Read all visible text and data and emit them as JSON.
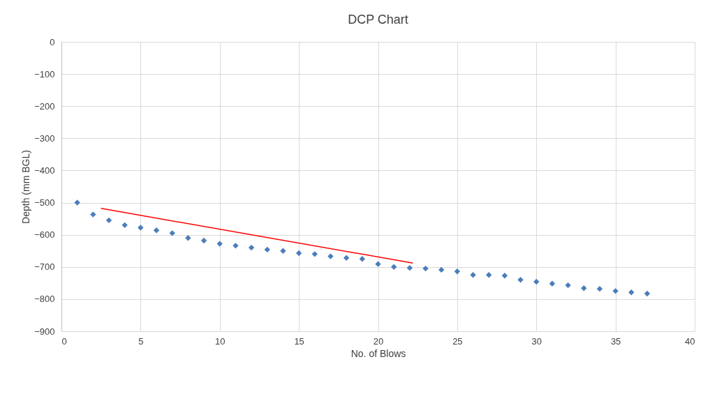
{
  "chart_data": {
    "type": "scatter",
    "title": "DCP Chart",
    "xlabel": "No. of Blows",
    "ylabel": "Depth (mm BGL)",
    "x": [
      1,
      2,
      3,
      4,
      5,
      6,
      7,
      8,
      9,
      10,
      11,
      12,
      13,
      14,
      15,
      16,
      17,
      18,
      19,
      20,
      21,
      22,
      23,
      24,
      25,
      26,
      27,
      28,
      29,
      30,
      31,
      32,
      33,
      34,
      35,
      36,
      37
    ],
    "series": [
      {
        "color": "#4a7ebb",
        "marker": "diamond",
        "values": [
          -500,
          -537,
          -555,
          -570,
          -578,
          -586,
          -595,
          -610,
          -618,
          -628,
          -634,
          -640,
          -646,
          -650,
          -657,
          -660,
          -667,
          -672,
          -675,
          -691,
          -700,
          -703,
          -705,
          -709,
          -714,
          -725,
          -725,
          -727,
          -740,
          -746,
          -752,
          -757,
          -766,
          -768,
          -775,
          -779,
          -783
        ]
      },
      {
        "type": "line",
        "color": "#ff0000",
        "x": [
          2.5,
          22.2
        ],
        "values": [
          -518,
          -688
        ]
      }
    ],
    "xlim": [
      0,
      40
    ],
    "xticks": [
      0,
      5,
      10,
      15,
      20,
      25,
      30,
      35,
      40
    ],
    "ylim": [
      -900,
      0
    ],
    "yticks": [
      -900,
      -800,
      -700,
      -600,
      -500,
      -400,
      -300,
      -200,
      -100,
      0
    ],
    "grid": true
  }
}
